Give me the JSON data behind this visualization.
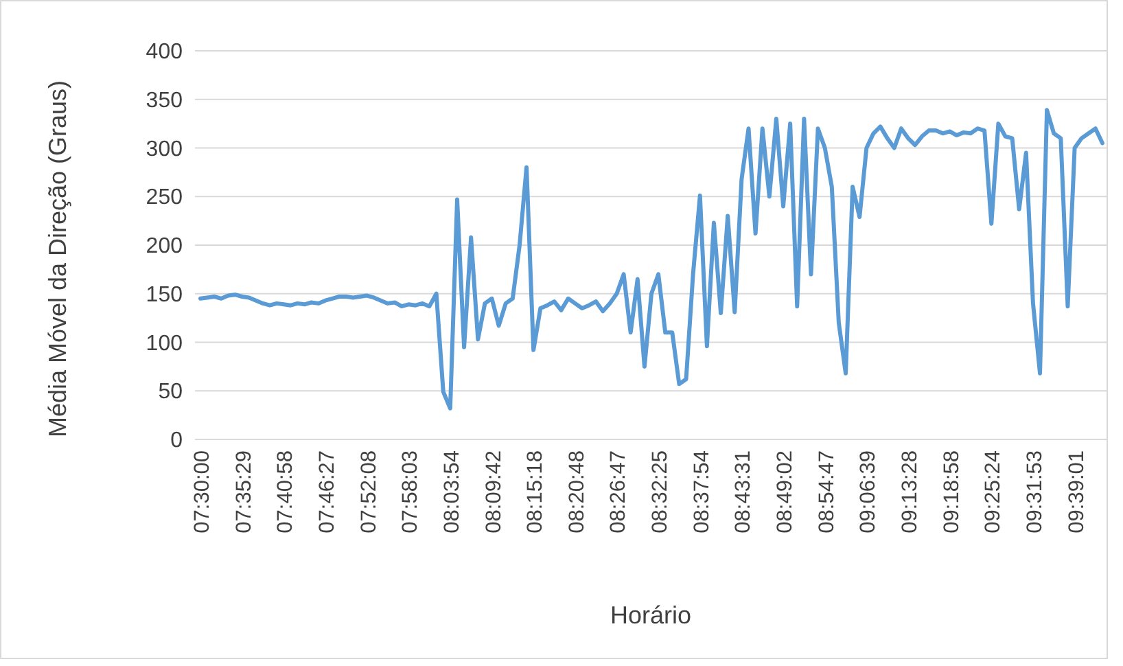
{
  "chart_data": {
    "type": "line",
    "xlabel": "Horário",
    "ylabel": "Média Móvel da Direção (Graus)",
    "categories": [
      "07:30:00",
      null,
      null,
      null,
      null,
      null,
      "07:35:29",
      null,
      null,
      null,
      null,
      null,
      "07:40:58",
      null,
      null,
      null,
      null,
      null,
      "07:46:27",
      null,
      null,
      null,
      null,
      null,
      "07:52:08",
      null,
      null,
      null,
      null,
      null,
      "07:58:03",
      null,
      null,
      null,
      null,
      null,
      "08:03:54",
      null,
      null,
      null,
      null,
      null,
      "08:09:42",
      null,
      null,
      null,
      null,
      null,
      "08:15:18",
      null,
      null,
      null,
      null,
      null,
      "08:20:48",
      null,
      null,
      null,
      null,
      null,
      "08:26:47",
      null,
      null,
      null,
      null,
      null,
      "08:32:25",
      null,
      null,
      null,
      null,
      null,
      "08:37:54",
      null,
      null,
      null,
      null,
      null,
      "08:43:31",
      null,
      null,
      null,
      null,
      null,
      "08:49:02",
      null,
      null,
      null,
      null,
      null,
      "08:54:47",
      null,
      null,
      null,
      null,
      null,
      "09:06:39",
      null,
      null,
      null,
      null,
      null,
      "09:13:28",
      null,
      null,
      null,
      null,
      null,
      "09:18:58",
      null,
      null,
      null,
      null,
      null,
      "09:25:24",
      null,
      null,
      null,
      null,
      null,
      "09:31:53",
      null,
      null,
      null,
      null,
      null,
      "09:39:01",
      null,
      null,
      null,
      null
    ],
    "series": [
      {
        "color": "#5b9bd5",
        "values": [
          145,
          146,
          147,
          145,
          148,
          149,
          147,
          146,
          143,
          140,
          138,
          140,
          139,
          138,
          140,
          139,
          141,
          140,
          143,
          145,
          147,
          147,
          146,
          147,
          148,
          146,
          143,
          140,
          141,
          137,
          139,
          138,
          140,
          137,
          150,
          49,
          32,
          247,
          95,
          208,
          103,
          140,
          145,
          117,
          140,
          145,
          200,
          280,
          92,
          135,
          138,
          142,
          133,
          145,
          140,
          135,
          138,
          142,
          132,
          140,
          150,
          170,
          110,
          165,
          75,
          150,
          170,
          110,
          110,
          57,
          62,
          170,
          251,
          96,
          223,
          130,
          230,
          131,
          268,
          320,
          212,
          320,
          250,
          330,
          240,
          325,
          137,
          330,
          170,
          320,
          300,
          260,
          120,
          68,
          260,
          229,
          300,
          315,
          322,
          310,
          300,
          320,
          310,
          303,
          312,
          318,
          318,
          315,
          317,
          313,
          316,
          315,
          320,
          318,
          222,
          325,
          312,
          310,
          237,
          295,
          140,
          68,
          339,
          315,
          310,
          137,
          300,
          310,
          315,
          320,
          305
        ]
      }
    ],
    "ylim": [
      0,
      400
    ],
    "yticks": [
      0,
      50,
      100,
      150,
      200,
      250,
      300,
      350,
      400
    ],
    "grid": "y"
  }
}
